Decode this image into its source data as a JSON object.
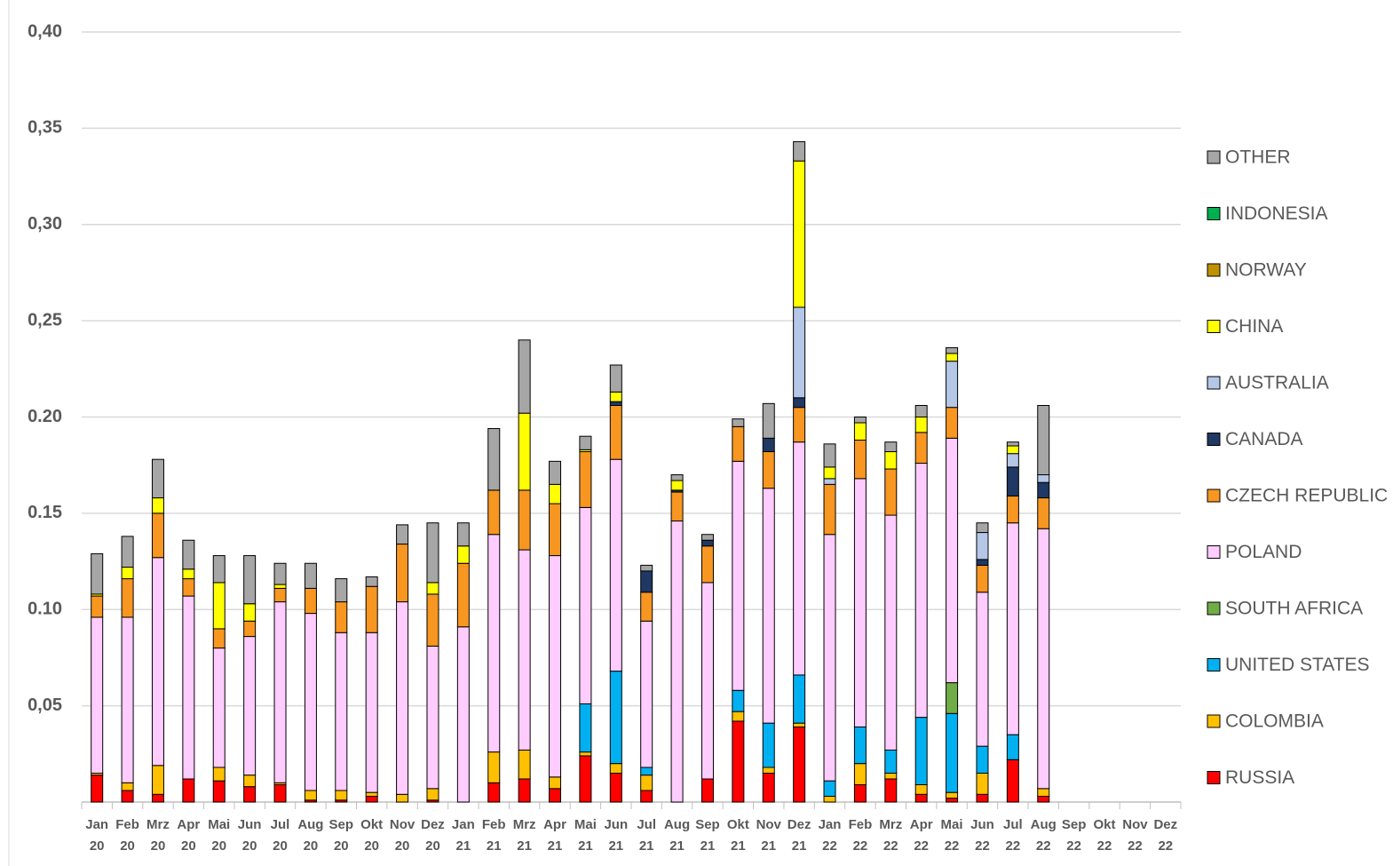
{
  "chart_data": {
    "type": "stacked_bar",
    "categories": [
      "Jan 20",
      "Feb 20",
      "Mrz 20",
      "Apr 20",
      "Mai 20",
      "Jun 20",
      "Jul 20",
      "Aug 20",
      "Sep 20",
      "Okt 20",
      "Nov 20",
      "Dez 20",
      "Jan 21",
      "Feb 21",
      "Mrz 21",
      "Apr 21",
      "Mai 21",
      "Jun 21",
      "Jul 21",
      "Aug 21",
      "Sep 21",
      "Okt 21",
      "Nov 21",
      "Dez 21",
      "Jan 22",
      "Feb 22",
      "Mrz 22",
      "Apr 22",
      "Mai 22",
      "Jun 22",
      "Jul 22",
      "Aug 22",
      "Sep 22",
      "Okt 22",
      "Nov 22",
      "Dez 22"
    ],
    "ylim": [
      0,
      0.4
    ],
    "yticks": [
      {
        "value": 0.05,
        "label": "0,05"
      },
      {
        "value": 0.1,
        "label": "0.10"
      },
      {
        "value": 0.15,
        "label": "0.15"
      },
      {
        "value": 0.2,
        "label": "0.20"
      },
      {
        "value": 0.25,
        "label": "0,25"
      },
      {
        "value": 0.3,
        "label": "0,30"
      },
      {
        "value": 0.35,
        "label": "0,35"
      },
      {
        "value": 0.4,
        "label": "0,40"
      }
    ],
    "grid": true,
    "legend": "right",
    "series": [
      {
        "name": "RUSSIA",
        "color": "#ff0000",
        "values": [
          0.014,
          0.006,
          0.004,
          0.012,
          0.011,
          0.008,
          0.009,
          0.001,
          0.001,
          0.003,
          0,
          0.001,
          0,
          0.01,
          0.012,
          0.007,
          0.024,
          0.015,
          0.006,
          0,
          0.012,
          0.042,
          0.015,
          0.039,
          0,
          0.009,
          0.012,
          0.004,
          0.002,
          0.004,
          0.022,
          0.003,
          null,
          null,
          null,
          null
        ]
      },
      {
        "name": "COLOMBIA",
        "color": "#ffc000",
        "values": [
          0.001,
          0.004,
          0.015,
          0,
          0.007,
          0.006,
          0.001,
          0.005,
          0.005,
          0.002,
          0.004,
          0.006,
          0,
          0.016,
          0.015,
          0.006,
          0.002,
          0.005,
          0.008,
          0,
          0,
          0.005,
          0.003,
          0.002,
          0.003,
          0.011,
          0.003,
          0.005,
          0.003,
          0.011,
          0,
          0.004,
          null,
          null,
          null,
          null
        ]
      },
      {
        "name": "UNITED STATES",
        "color": "#00b0f0",
        "values": [
          0,
          0,
          0,
          0,
          0,
          0,
          0,
          0,
          0,
          0,
          0,
          0,
          0,
          0,
          0,
          0,
          0.025,
          0.048,
          0.004,
          0,
          0,
          0.011,
          0.023,
          0.025,
          0.008,
          0.019,
          0.012,
          0.035,
          0.041,
          0.014,
          0.013,
          0,
          null,
          null,
          null,
          null
        ]
      },
      {
        "name": "SOUTH AFRICA",
        "color": "#70ad47",
        "values": [
          0,
          0,
          0,
          0,
          0,
          0,
          0,
          0,
          0,
          0,
          0,
          0,
          0,
          0,
          0,
          0,
          0,
          0,
          0,
          0,
          0,
          0,
          0,
          0,
          0,
          0,
          0,
          0,
          0.016,
          0,
          0,
          0,
          null,
          null,
          null,
          null
        ]
      },
      {
        "name": "POLAND",
        "color": "#ffccff",
        "values": [
          0.081,
          0.086,
          0.108,
          0.095,
          0.062,
          0.072,
          0.094,
          0.092,
          0.082,
          0.083,
          0.1,
          0.074,
          0.091,
          0.113,
          0.104,
          0.115,
          0.102,
          0.11,
          0.076,
          0.146,
          0.102,
          0.119,
          0.122,
          0.121,
          0.128,
          0.129,
          0.122,
          0.132,
          0.127,
          0.08,
          0.11,
          0.135,
          null,
          null,
          null,
          null
        ]
      },
      {
        "name": "CZECH REPUBLIC",
        "color": "#f79620",
        "values": [
          0.011,
          0.02,
          0.023,
          0.009,
          0.01,
          0.008,
          0.007,
          0.013,
          0.016,
          0.024,
          0.03,
          0.027,
          0.033,
          0.023,
          0.031,
          0.027,
          0.029,
          0.028,
          0.015,
          0.015,
          0.019,
          0.018,
          0.019,
          0.018,
          0.026,
          0.02,
          0.024,
          0.016,
          0.016,
          0.014,
          0.014,
          0.016,
          null,
          null,
          null,
          null
        ]
      },
      {
        "name": "CANADA",
        "color": "#1f3864",
        "values": [
          0,
          0,
          0,
          0,
          0,
          0,
          0,
          0,
          0,
          0,
          0,
          0,
          0,
          0,
          0,
          0,
          0,
          0.002,
          0.011,
          0.001,
          0.003,
          0,
          0.007,
          0.005,
          0,
          0,
          0,
          0,
          0,
          0.003,
          0.015,
          0.008,
          null,
          null,
          null,
          null
        ]
      },
      {
        "name": "AUSTRALIA",
        "color": "#b4c7e7",
        "values": [
          0,
          0,
          0,
          0,
          0,
          0,
          0,
          0,
          0,
          0,
          0,
          0,
          0,
          0,
          0,
          0,
          0,
          0,
          0,
          0,
          0,
          0,
          0,
          0.047,
          0.003,
          0,
          0,
          0,
          0.024,
          0.014,
          0.007,
          0.004,
          null,
          null,
          null,
          null
        ]
      },
      {
        "name": "CHINA",
        "color": "#ffff00",
        "values": [
          0.001,
          0.006,
          0.008,
          0.005,
          0.024,
          0.009,
          0.002,
          0,
          0,
          0,
          0,
          0.006,
          0.009,
          0,
          0.04,
          0.01,
          0.001,
          0.005,
          0,
          0.005,
          0,
          0,
          0,
          0.076,
          0.006,
          0.009,
          0.009,
          0.008,
          0.004,
          0,
          0.004,
          0,
          null,
          null,
          null,
          null
        ]
      },
      {
        "name": "NORWAY",
        "color": "#bf9000",
        "values": [
          0,
          0,
          0,
          0,
          0,
          0,
          0,
          0,
          0,
          0,
          0,
          0,
          0,
          0,
          0,
          0,
          0,
          0,
          0,
          0,
          0,
          0,
          0,
          0,
          0,
          0,
          0,
          0,
          0,
          0,
          0,
          0,
          null,
          null,
          null,
          null
        ]
      },
      {
        "name": "INDONESIA",
        "color": "#00b050",
        "values": [
          0,
          0,
          0,
          0,
          0,
          0,
          0,
          0,
          0,
          0,
          0,
          0,
          0,
          0,
          0,
          0,
          0,
          0,
          0,
          0,
          0,
          0,
          0,
          0,
          0,
          0,
          0,
          0,
          0,
          0,
          0,
          0,
          null,
          null,
          null,
          null
        ]
      },
      {
        "name": "OTHER",
        "color": "#a6a6a6",
        "values": [
          0.021,
          0.016,
          0.02,
          0.015,
          0.014,
          0.025,
          0.011,
          0.013,
          0.012,
          0.005,
          0.01,
          0.031,
          0.012,
          0.032,
          0.038,
          0.012,
          0.007,
          0.014,
          0.003,
          0.003,
          0.003,
          0.004,
          0.018,
          0.01,
          0.012,
          0.003,
          0.005,
          0.006,
          0.003,
          0.005,
          0.002,
          0.036,
          null,
          null,
          null,
          null
        ]
      }
    ]
  }
}
